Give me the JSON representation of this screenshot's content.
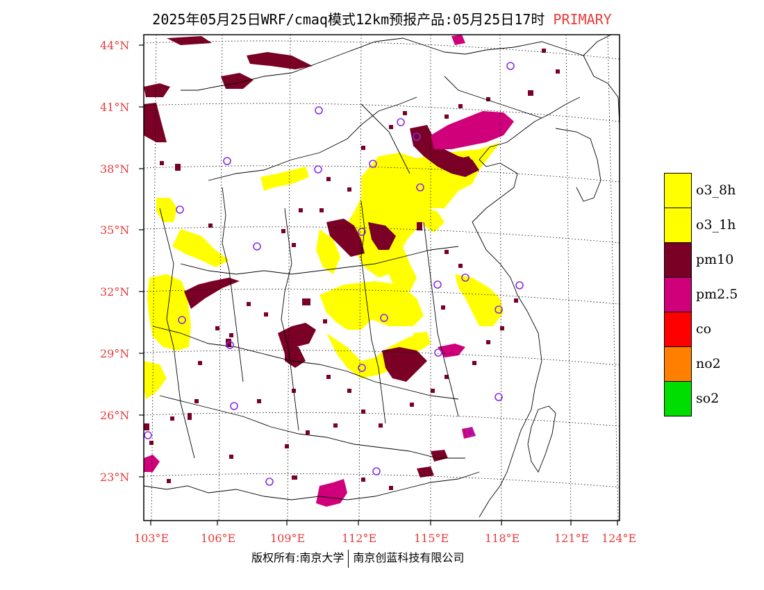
{
  "title": {
    "main": "2025年05月25日WRF/cmaq模式12km预报产品:05月25日17时",
    "tag": "PRIMARY"
  },
  "footer": {
    "left": "版权所有:南京大学",
    "right": "南京创蓝科技有限公司"
  },
  "axes": {
    "lat_labels": [
      "44°N",
      "41°N",
      "38°N",
      "35°N",
      "32°N",
      "29°N",
      "26°N",
      "23°N"
    ],
    "lon_labels": [
      "103°E",
      "106°E",
      "109°E",
      "112°E",
      "115°E",
      "118°E",
      "121°E",
      "124°E"
    ]
  },
  "legend": [
    {
      "label": "o3_8h",
      "color": "#ffff00"
    },
    {
      "label": "o3_1h",
      "color": "#ffff00"
    },
    {
      "label": "pm10",
      "color": "#7a0026"
    },
    {
      "label": "pm2.5",
      "color": "#d0007a"
    },
    {
      "label": "co",
      "color": "#ff0000"
    },
    {
      "label": "no2",
      "color": "#ff7f00"
    },
    {
      "label": "so2",
      "color": "#00dd00"
    }
  ],
  "colors": {
    "o3": "#ffff00",
    "pm10": "#7a0026",
    "pm25": "#d0007a",
    "station": "#8a2be2",
    "axis_label": "#e83a3a"
  }
}
